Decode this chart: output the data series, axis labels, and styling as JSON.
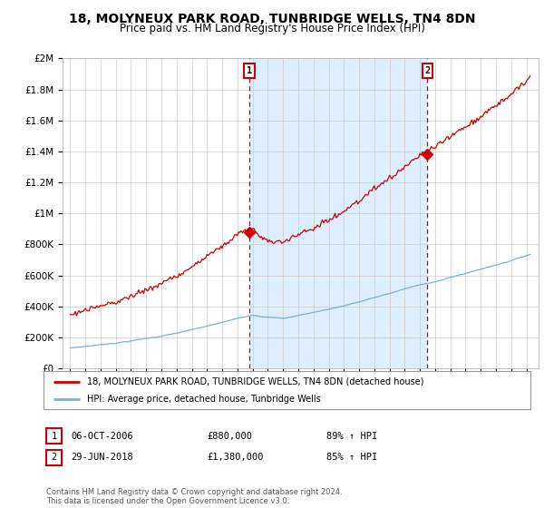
{
  "title": "18, MOLYNEUX PARK ROAD, TUNBRIDGE WELLS, TN4 8DN",
  "subtitle": "Price paid vs. HM Land Registry's House Price Index (HPI)",
  "legend_line1": "18, MOLYNEUX PARK ROAD, TUNBRIDGE WELLS, TN4 8DN (detached house)",
  "legend_line2": "HPI: Average price, detached house, Tunbridge Wells",
  "annotation1_label": "1",
  "annotation1_date": "06-OCT-2006",
  "annotation1_price": "£880,000",
  "annotation1_hpi": "89% ↑ HPI",
  "annotation1_year": 2006.77,
  "annotation1_value": 880000,
  "annotation2_label": "2",
  "annotation2_date": "29-JUN-2018",
  "annotation2_price": "£1,380,000",
  "annotation2_hpi": "85% ↑ HPI",
  "annotation2_year": 2018.49,
  "annotation2_value": 1380000,
  "red_color": "#cc0000",
  "blue_color": "#7bafd4",
  "shade_color": "#ddeeff",
  "bg_color": "#ffffff",
  "grid_color": "#cccccc",
  "title_fontsize": 10,
  "subtitle_fontsize": 8.5,
  "ylim_min": 0,
  "ylim_max": 2000000,
  "xlim_min": 1994.5,
  "xlim_max": 2025.8
}
